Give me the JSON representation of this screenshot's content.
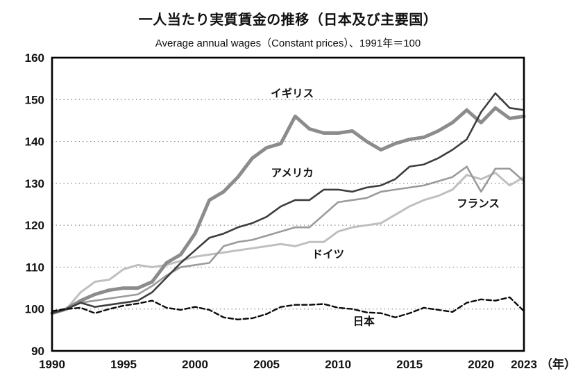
{
  "page": {
    "background": "#ffffff"
  },
  "chart_data": {
    "type": "line",
    "title": "一人当たり実質賃金の推移（日本及び主要国）",
    "subtitle": "Average annual wages（Constant prices）、1991年＝100",
    "x_unit_label": "（年）",
    "xlabel": "",
    "ylabel": "",
    "xlim": [
      1990,
      2023
    ],
    "ylim": [
      90,
      160
    ],
    "xticks": [
      1990,
      1995,
      2000,
      2005,
      2010,
      2015,
      2020,
      2023
    ],
    "yticks": [
      90,
      100,
      110,
      120,
      130,
      140,
      150,
      160
    ],
    "grid": "horizontal-dotted",
    "legend_position": "inline-annotations",
    "x": [
      1990,
      1991,
      1992,
      1993,
      1994,
      1995,
      1996,
      1997,
      1998,
      1999,
      2000,
      2001,
      2002,
      2003,
      2004,
      2005,
      2006,
      2007,
      2008,
      2009,
      2010,
      2011,
      2012,
      2013,
      2014,
      2015,
      2016,
      2017,
      2018,
      2019,
      2020,
      2021,
      2022,
      2023
    ],
    "series": [
      {
        "key": "germany",
        "name": "ドイツ",
        "color": "#bfbfbf",
        "width": 3,
        "dash": "",
        "label": {
          "x": 2009.3,
          "y": 112.2
        },
        "values": [
          99,
          100,
          104,
          106.5,
          107,
          109.5,
          110.5,
          110,
          110.5,
          111.5,
          112.5,
          113,
          113.5,
          114,
          114.5,
          115,
          115.5,
          115,
          116,
          116,
          118.5,
          119.5,
          120,
          120.5,
          122.5,
          124.5,
          126,
          127,
          128.5,
          132,
          131,
          132.5,
          129.5,
          131.5
        ]
      },
      {
        "key": "france",
        "name": "フランス",
        "color": "#9a9a9a",
        "width": 2.6,
        "dash": "",
        "label": {
          "x": 2019.8,
          "y": 124.3
        },
        "values": [
          99,
          100,
          101.5,
          102,
          102.5,
          103,
          103.5,
          105.5,
          108,
          110,
          110.5,
          111,
          115,
          116,
          116.5,
          117.5,
          118.5,
          119.5,
          119.5,
          122.5,
          125.5,
          126,
          126.5,
          128,
          128.5,
          129,
          129.5,
          130.5,
          131.5,
          134,
          128,
          133.5,
          133.5,
          130.5
        ]
      },
      {
        "key": "uk",
        "name": "イギリス",
        "color": "#8c8c8c",
        "width": 5,
        "dash": "",
        "label": {
          "x": 2006.8,
          "y": 150.6
        },
        "values": [
          99,
          100,
          102,
          103.5,
          104.5,
          105,
          105,
          106.5,
          111,
          113,
          118,
          126,
          128,
          131.5,
          136,
          138.5,
          139.5,
          146,
          143,
          142,
          142,
          142.5,
          140,
          138,
          139.5,
          140.5,
          141,
          142.5,
          144.5,
          147.5,
          144.5,
          148,
          145.5,
          146
        ]
      },
      {
        "key": "us",
        "name": "アメリカ",
        "color": "#3d3d3d",
        "width": 2.6,
        "dash": "",
        "label": {
          "x": 2006.8,
          "y": 131.6
        },
        "values": [
          99,
          100,
          101.5,
          100.5,
          101,
          101.5,
          102,
          104,
          107.5,
          111,
          114,
          117,
          118,
          119.5,
          120.5,
          122,
          124.5,
          126,
          126,
          128.5,
          128.5,
          128,
          129,
          129.5,
          131,
          134,
          134.5,
          136,
          138,
          140.5,
          147,
          151.5,
          148,
          147.5
        ]
      },
      {
        "key": "japan",
        "name": "日本",
        "color": "#0a0a0a",
        "width": 2.4,
        "dash": "7 4",
        "label": {
          "x": 2011.8,
          "y": 96.2
        },
        "values": [
          99.5,
          100,
          100.3,
          99,
          100,
          100.8,
          101.3,
          102,
          100.3,
          99.8,
          100.5,
          99.8,
          98,
          97.5,
          97.8,
          98.8,
          100.5,
          101,
          101,
          101.2,
          100.3,
          100,
          99.2,
          99,
          98,
          99,
          100.3,
          99.8,
          99.3,
          101.5,
          102.3,
          102,
          102.8,
          99.5
        ]
      }
    ]
  }
}
